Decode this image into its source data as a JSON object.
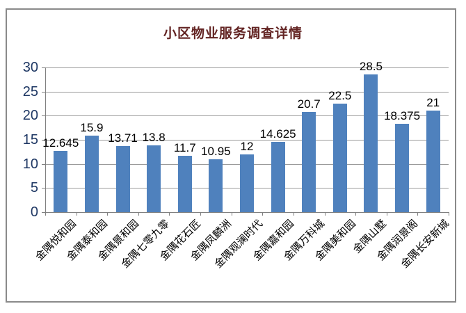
{
  "chart_data": {
    "type": "bar",
    "title": "小区物业服务调查详情",
    "categories": [
      "金隅悦和园",
      "金隅泰和园",
      "金隅景和园",
      "金隅七零九零",
      "金隅花石匠",
      "金隅凤麟洲",
      "金隅观澜时代",
      "金隅嘉和园",
      "金隅万科城",
      "金隅美和园",
      "金隅山墅",
      "金隅润景阁",
      "金隅长安新城"
    ],
    "values": [
      12.645,
      15.9,
      13.71,
      13.8,
      11.7,
      10.95,
      12,
      14.625,
      20.7,
      22.5,
      28.5,
      18.375,
      21
    ],
    "data_labels": [
      "12.645",
      "15.9",
      "13.71",
      "13.8",
      "11.7",
      "10.95",
      "12",
      "14.625",
      "20.7",
      "22.5",
      "28.5",
      "18.375",
      "21"
    ],
    "xlabel": "",
    "ylabel": "",
    "ylim": [
      0,
      30
    ],
    "ytick_step": 5,
    "ytick_labels": [
      "0",
      "5",
      "10",
      "15",
      "20",
      "25",
      "30"
    ],
    "grid": true,
    "legend": "none",
    "colors": {
      "bar": "#4F81BD",
      "gridline": "#9B9B9B",
      "axis": "#808080",
      "title": "#632423",
      "ytick_text": "#1F3864",
      "xtick_text": "#000000",
      "data_label_text": "#000000",
      "frame_border": "#8A8A8A",
      "background": "#FFFFFF"
    }
  }
}
